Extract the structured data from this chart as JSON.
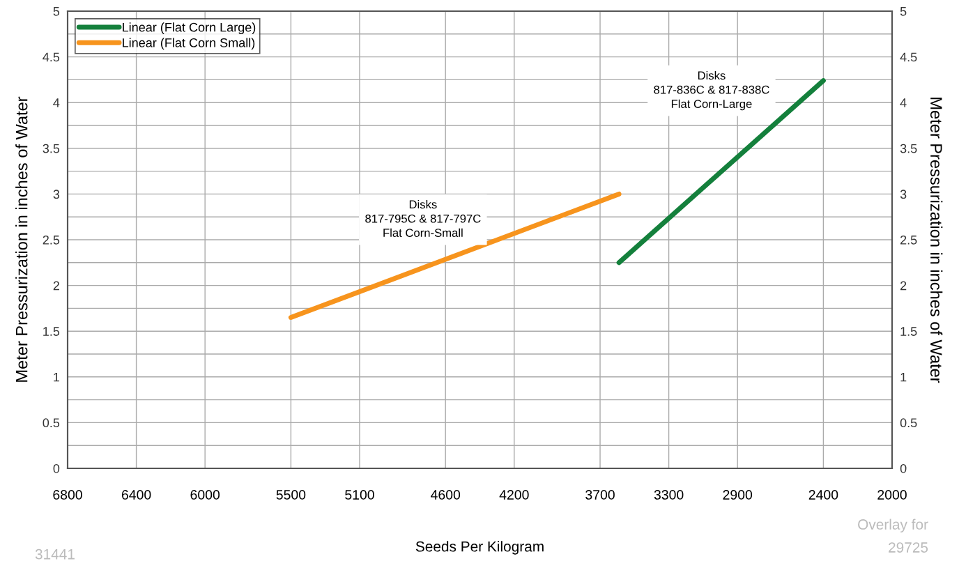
{
  "chart_data": {
    "type": "line",
    "xlabel": "Seeds Per Kilogram",
    "ylabel": "Meter Pressurization in inches of Water",
    "y2label": "Meter Pressurization in inches of Water",
    "series": [
      {
        "name": "Linear (Flat Corn Large)",
        "color": "#14803c",
        "x": [
          3590,
          2400
        ],
        "values": [
          2.25,
          4.24
        ]
      },
      {
        "name": "Linear (Flat Corn Small)",
        "color": "#f7941d",
        "x": [
          5500,
          3590
        ],
        "values": [
          1.65,
          3.0
        ]
      }
    ],
    "xlim": [
      6800,
      2000
    ],
    "xticks": [
      6800,
      6400,
      6000,
      5500,
      5100,
      4600,
      4200,
      3700,
      3300,
      2900,
      2400,
      2000
    ],
    "ylim": [
      0,
      5
    ],
    "yticks": [
      0,
      0.5,
      1,
      1.5,
      2,
      2.5,
      3,
      3.5,
      4,
      4.5,
      5
    ],
    "y2lim": [
      0,
      5
    ],
    "y2ticks": [
      0,
      0.5,
      1,
      1.5,
      2,
      2.5,
      3,
      3.5,
      4,
      4.5,
      5
    ],
    "annotations": [
      "Disks\n817-795C & 817-797C\nFlat Corn-Small",
      "Disks\n817-836C & 817-838C\nFlat Corn-Large",
      "31441",
      "Overlay for\n29725"
    ],
    "grid": true,
    "legend": "top left",
    "marker": "none",
    "line_style": "solid"
  }
}
